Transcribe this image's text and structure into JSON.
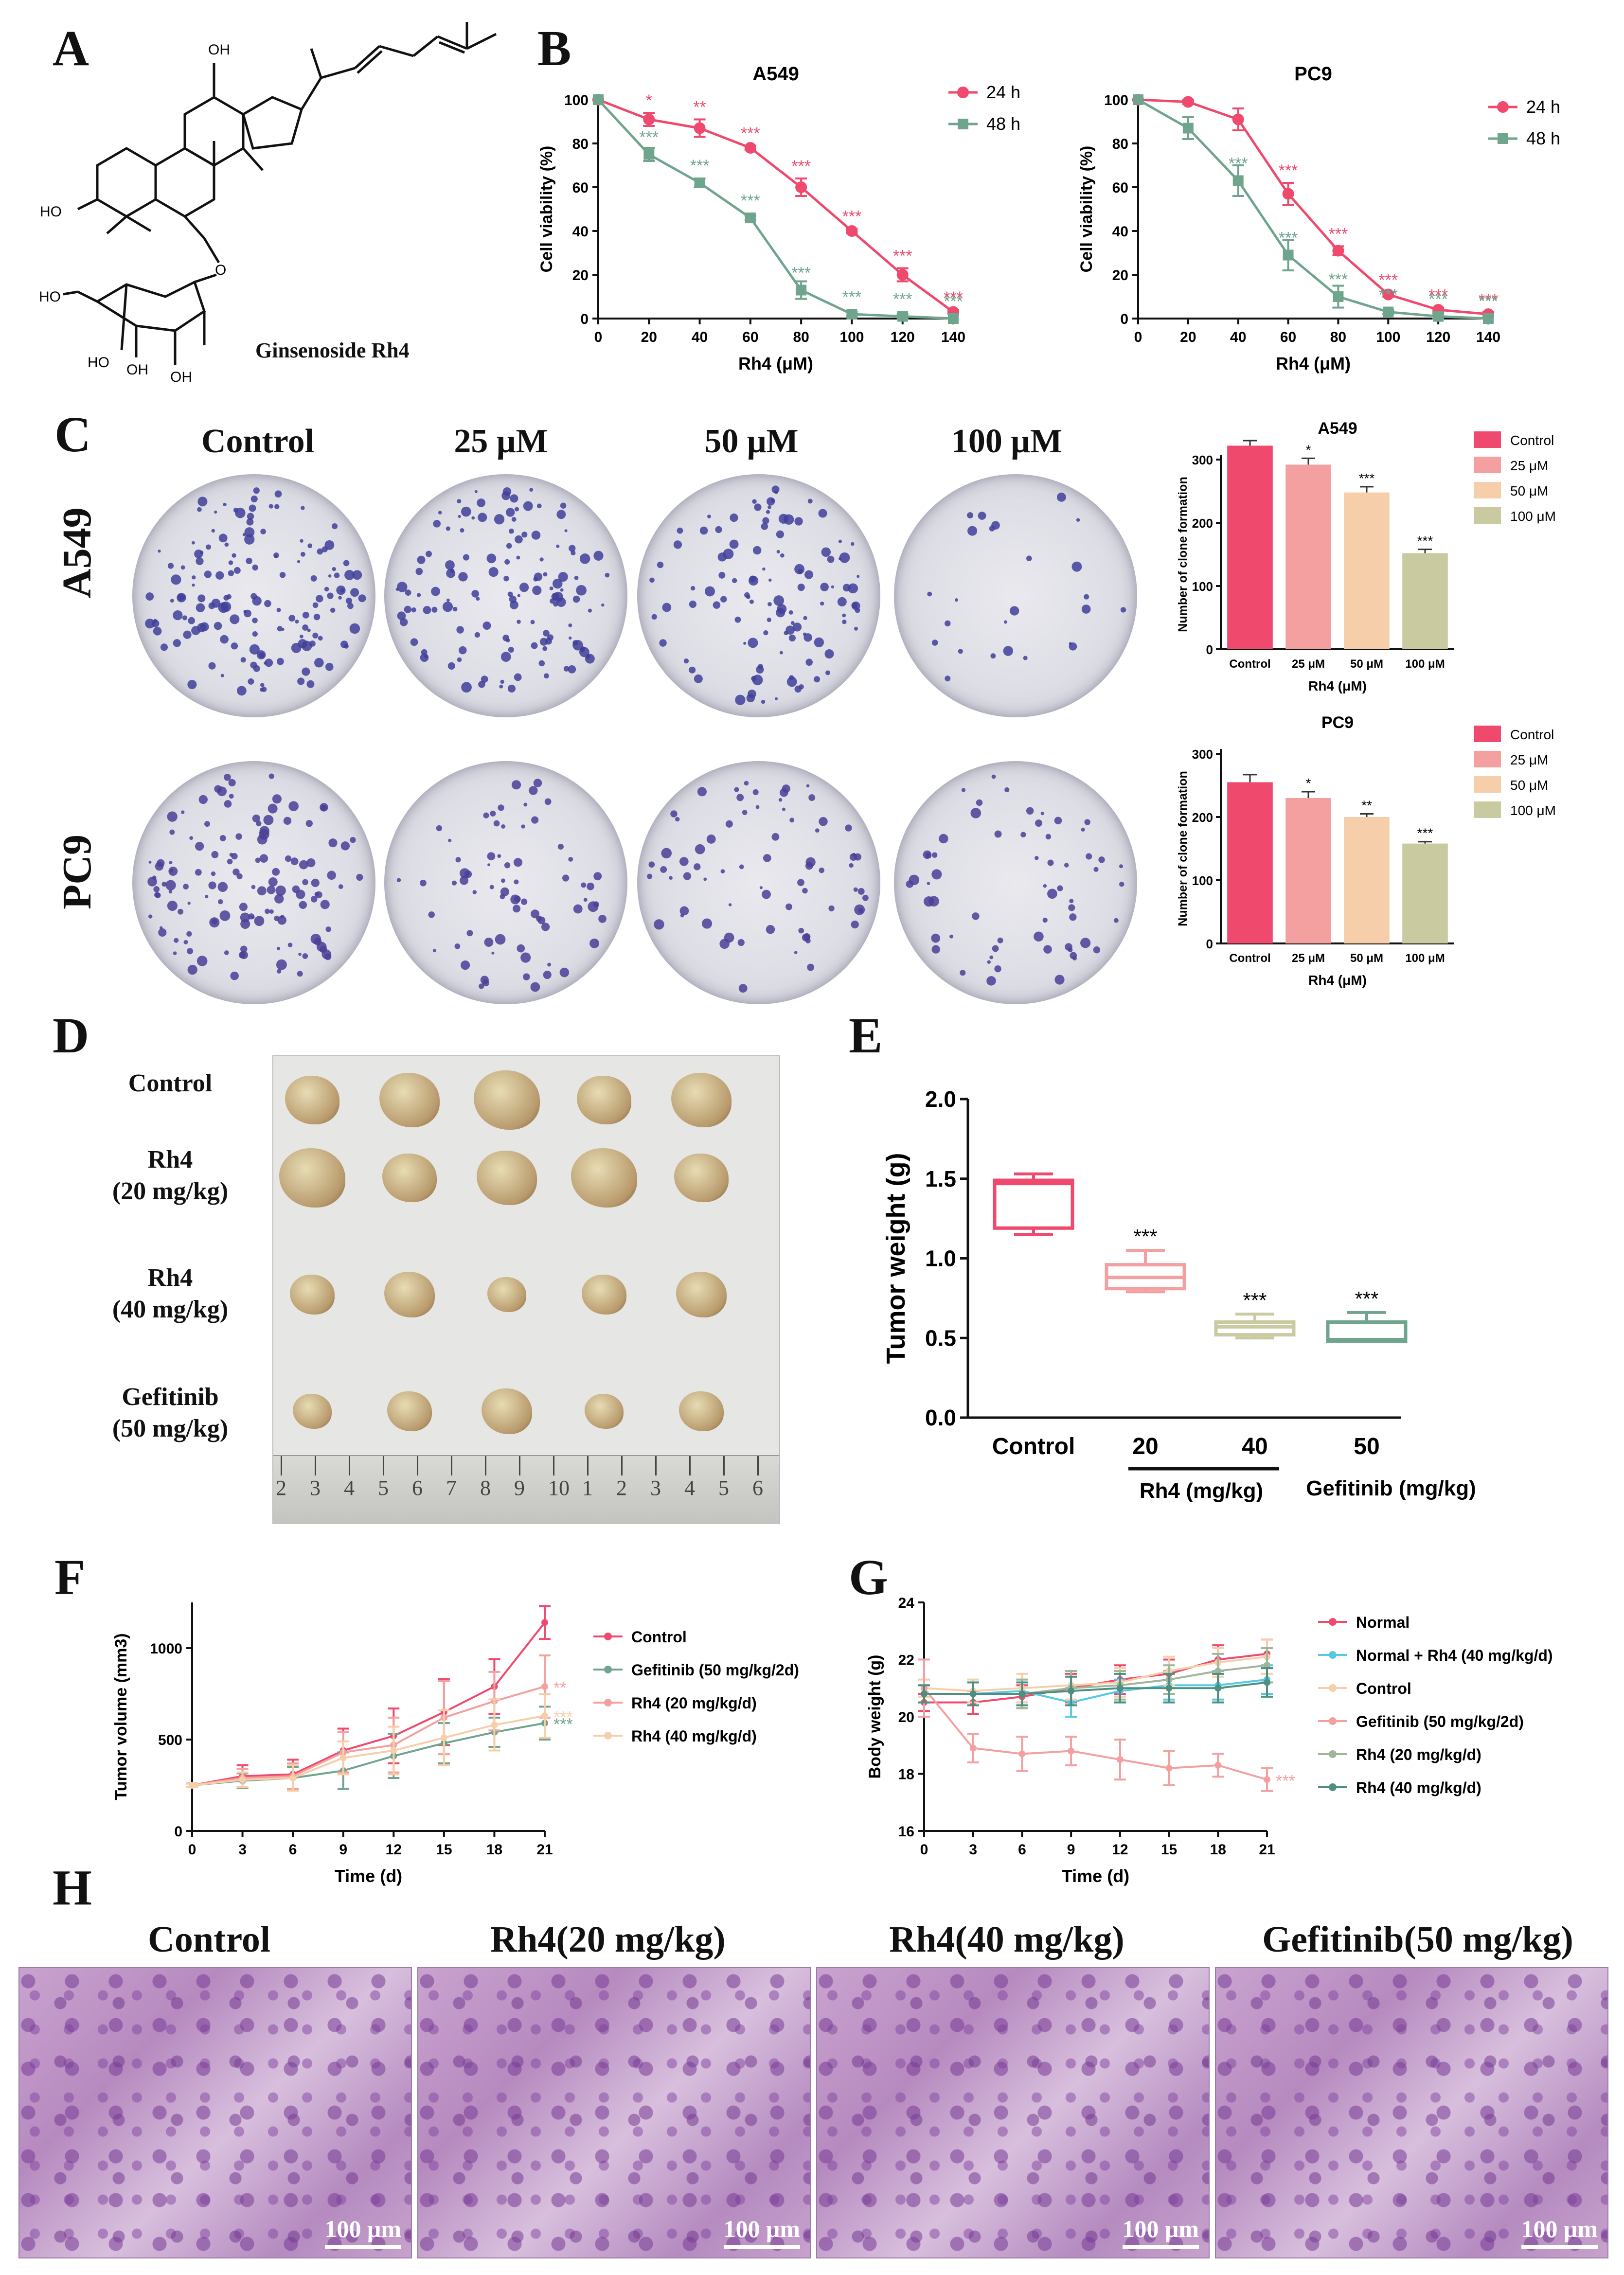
{
  "panel_labels": {
    "A": "A",
    "B": "B",
    "C": "C",
    "D": "D",
    "E": "E",
    "F": "F",
    "G": "G",
    "H": "H"
  },
  "panelA": {
    "caption": "Ginsenoside Rh4",
    "atom_labels": [
      "OH",
      "HO",
      "O",
      "HO",
      "HO",
      "OH",
      "OH"
    ]
  },
  "panelC": {
    "column_titles": [
      "Control",
      "25 μM",
      "50 μM",
      "100 μM"
    ],
    "row_titles": [
      "A549",
      "PC9"
    ]
  },
  "panelD": {
    "row_labels": [
      [
        "Control"
      ],
      [
        "Rh4",
        "(20 mg/kg)"
      ],
      [
        "Rh4",
        "(40 mg/kg)"
      ],
      [
        "Gefitinib",
        "(50 mg/kg)"
      ]
    ],
    "ruler_digits": [
      "2",
      "3",
      "4",
      "5",
      "6",
      "7",
      "8",
      "9",
      "10",
      "1",
      "2",
      "3",
      "4",
      "5",
      "6"
    ]
  },
  "panelH": {
    "titles": [
      "Control",
      "Rh4(20 mg/kg)",
      "Rh4(40 mg/kg)",
      "Gefitinib(50 mg/kg)"
    ],
    "scale_bar": "100 μm"
  },
  "colors": {
    "pink": "#ef4a6e",
    "green": "#6fa48d",
    "salmon": "#f4a0a0",
    "peach": "#f6cfaa",
    "khaki": "#c9caa0",
    "cyan": "#57c8e4",
    "teal": "#4f8f82",
    "gray_green": "#9fb69a"
  },
  "chart_data": [
    {
      "id": "B-A549",
      "type": "line",
      "title": "A549",
      "xlabel": "Rh4 (μM)",
      "ylabel": "Cell viability (%)",
      "x": [
        0,
        20,
        40,
        60,
        80,
        100,
        120,
        140
      ],
      "xlim": [
        0,
        140
      ],
      "ylim": [
        0,
        100
      ],
      "xticks": [
        0,
        20,
        40,
        60,
        80,
        100,
        120,
        140
      ],
      "yticks": [
        0,
        20,
        40,
        60,
        80,
        100
      ],
      "legend": "top-right",
      "series": [
        {
          "name": "24 h",
          "color": "#ef4a6e",
          "marker": "circle",
          "values": [
            100,
            91,
            87,
            78,
            60,
            40,
            20,
            3
          ],
          "err": [
            0,
            3,
            4,
            1,
            4,
            1,
            3,
            1
          ],
          "sig": [
            "",
            "*",
            "**",
            "***",
            "***",
            "***",
            "***",
            "***"
          ]
        },
        {
          "name": "48 h",
          "color": "#6fa48d",
          "marker": "square",
          "values": [
            100,
            75,
            62,
            46,
            13,
            2,
            1,
            0
          ],
          "err": [
            0,
            3,
            2,
            1,
            4,
            1,
            1,
            0
          ],
          "sig": [
            "",
            "***",
            "***",
            "***",
            "***",
            "***",
            "***",
            "***"
          ]
        }
      ]
    },
    {
      "id": "B-PC9",
      "type": "line",
      "title": "PC9",
      "xlabel": "Rh4 (μM)",
      "ylabel": "Cell viability (%)",
      "x": [
        0,
        20,
        40,
        60,
        80,
        100,
        120,
        140
      ],
      "xlim": [
        0,
        140
      ],
      "ylim": [
        0,
        100
      ],
      "xticks": [
        0,
        20,
        40,
        60,
        80,
        100,
        120,
        140
      ],
      "yticks": [
        0,
        20,
        40,
        60,
        80,
        100
      ],
      "legend": "top-right",
      "series": [
        {
          "name": "24 h",
          "color": "#ef4a6e",
          "marker": "circle",
          "values": [
            100,
            99,
            91,
            57,
            31,
            11,
            4,
            2
          ],
          "err": [
            0,
            1,
            5,
            5,
            2,
            1,
            1,
            1
          ],
          "sig": [
            "",
            "",
            "",
            "***",
            "***",
            "***",
            "***",
            "***"
          ]
        },
        {
          "name": "48 h",
          "color": "#6fa48d",
          "marker": "square",
          "values": [
            100,
            87,
            63,
            29,
            10,
            3,
            1,
            0
          ],
          "err": [
            0,
            5,
            7,
            7,
            5,
            1,
            1,
            0
          ],
          "sig": [
            "",
            "",
            "***",
            "***",
            "***",
            "***",
            "***",
            "***"
          ]
        }
      ]
    },
    {
      "id": "C-A549",
      "type": "bar",
      "title": "A549",
      "categories": [
        "Control",
        "25 μM",
        "50 μM",
        "100 μM"
      ],
      "values": [
        322,
        292,
        248,
        152
      ],
      "err": [
        8,
        10,
        9,
        6
      ],
      "sig": [
        "",
        "*",
        "***",
        "***"
      ],
      "colors": [
        "#ef4a6e",
        "#f4a0a0",
        "#f6cfaa",
        "#c9caa0"
      ],
      "xlabel": "Rh4 (μM)",
      "ylabel": "Number of clone formation",
      "ylim": [
        0,
        300
      ],
      "yticks": [
        0,
        100,
        200,
        300
      ],
      "legend": [
        "Control",
        "25 μM",
        "50 μM",
        "100 μM"
      ]
    },
    {
      "id": "C-PC9",
      "type": "bar",
      "title": "PC9",
      "categories": [
        "Control",
        "25 μM",
        "50 μM",
        "100 μM"
      ],
      "values": [
        255,
        230,
        200,
        158
      ],
      "err": [
        12,
        10,
        5,
        3
      ],
      "sig": [
        "",
        "*",
        "**",
        "***"
      ],
      "colors": [
        "#ef4a6e",
        "#f4a0a0",
        "#f6cfaa",
        "#c9caa0"
      ],
      "xlabel": "Rh4 (μM)",
      "ylabel": "Number of clone formation",
      "ylim": [
        0,
        300
      ],
      "yticks": [
        0,
        100,
        200,
        300
      ],
      "legend": [
        "Control",
        "25 μM",
        "50 μM",
        "100 μM"
      ]
    },
    {
      "id": "E",
      "type": "box",
      "ylabel": "Tumor weight (g)",
      "categories": [
        "Control",
        "20",
        "40",
        "50"
      ],
      "group_labels": [
        "Rh4 (mg/kg)",
        "Gefitinib (mg/kg)"
      ],
      "ylim": [
        0,
        2.0
      ],
      "yticks": [
        0.0,
        0.5,
        1.0,
        1.5,
        2.0
      ],
      "boxes": [
        {
          "min": 1.15,
          "q1": 1.19,
          "median": 1.47,
          "q3": 1.49,
          "max": 1.53,
          "color": "#ef4a6e",
          "sig": ""
        },
        {
          "min": 0.79,
          "q1": 0.81,
          "median": 0.88,
          "q3": 0.96,
          "max": 1.05,
          "color": "#f4a0a0",
          "sig": "***"
        },
        {
          "min": 0.5,
          "q1": 0.52,
          "median": 0.57,
          "q3": 0.6,
          "max": 0.65,
          "color": "#c9caa0",
          "sig": "***"
        },
        {
          "min": 0.48,
          "q1": 0.48,
          "median": 0.49,
          "q3": 0.6,
          "max": 0.66,
          "color": "#6fa48d",
          "sig": "***"
        }
      ]
    },
    {
      "id": "F",
      "type": "line",
      "xlabel": "Time (d)",
      "ylabel": "Tumor volume (mm3)",
      "x": [
        0,
        3,
        6,
        9,
        12,
        15,
        18,
        21
      ],
      "xlim": [
        0,
        21
      ],
      "ylim": [
        0,
        1250
      ],
      "xticks": [
        0,
        3,
        6,
        9,
        12,
        15,
        18,
        21
      ],
      "yticks": [
        0,
        500,
        1000
      ],
      "legend": "right",
      "series": [
        {
          "name": "Control",
          "color": "#ef4a6e",
          "values": [
            250,
            300,
            310,
            440,
            520,
            650,
            790,
            1140
          ],
          "err": [
            10,
            60,
            80,
            120,
            150,
            180,
            150,
            90
          ],
          "sig": ""
        },
        {
          "name": "Gefitinib (50 mg/kg/2d)",
          "color": "#6fa48d",
          "values": [
            250,
            275,
            290,
            330,
            410,
            480,
            540,
            590
          ],
          "err": [
            10,
            40,
            60,
            100,
            120,
            110,
            80,
            90
          ],
          "sig": "***"
        },
        {
          "name": "Rh4 (20 mg/kg/d)",
          "color": "#f4a0a0",
          "values": [
            250,
            290,
            300,
            430,
            470,
            620,
            710,
            790
          ],
          "err": [
            10,
            50,
            70,
            110,
            150,
            200,
            160,
            170
          ],
          "sig": "**"
        },
        {
          "name": "Rh4 (40 mg/kg/d)",
          "color": "#f6cfaa",
          "values": [
            250,
            280,
            290,
            400,
            440,
            510,
            580,
            630
          ],
          "err": [
            10,
            40,
            70,
            90,
            130,
            150,
            140,
            120
          ],
          "sig": "***"
        }
      ]
    },
    {
      "id": "G",
      "type": "line",
      "xlabel": "Time (d)",
      "ylabel": "Body weight (g)",
      "x": [
        0,
        3,
        6,
        9,
        12,
        15,
        18,
        21
      ],
      "xlim": [
        0,
        21
      ],
      "ylim": [
        16,
        24
      ],
      "xticks": [
        0,
        3,
        6,
        9,
        12,
        15,
        18,
        21
      ],
      "yticks": [
        16,
        18,
        20,
        22,
        24
      ],
      "legend": "right",
      "series": [
        {
          "name": "Normal",
          "color": "#ef4a6e",
          "values": [
            20.5,
            20.5,
            20.7,
            21.0,
            21.3,
            21.5,
            22.0,
            22.2
          ],
          "err": [
            0.3,
            0.4,
            0.4,
            0.5,
            0.5,
            0.5,
            0.5,
            0.5
          ],
          "sig": ""
        },
        {
          "name": "Normal + Rh4 (40 mg/kg/d)",
          "color": "#57c8e4",
          "values": [
            20.8,
            20.8,
            20.9,
            20.5,
            20.9,
            21.1,
            21.1,
            21.3
          ],
          "err": [
            0.3,
            0.4,
            0.4,
            0.5,
            0.4,
            0.5,
            0.5,
            0.5
          ],
          "sig": ""
        },
        {
          "name": "Control",
          "color": "#f6cfaa",
          "values": [
            21.0,
            20.9,
            21.0,
            21.1,
            21.2,
            21.6,
            21.9,
            22.1
          ],
          "err": [
            0.3,
            0.4,
            0.5,
            0.5,
            0.5,
            0.5,
            0.5,
            0.6
          ],
          "sig": ""
        },
        {
          "name": "Gefitinib (50 mg/kg/2d)",
          "color": "#f4a0a0",
          "values": [
            21.0,
            18.9,
            18.7,
            18.8,
            18.5,
            18.2,
            18.3,
            17.8
          ],
          "err": [
            1.0,
            0.5,
            0.6,
            0.5,
            0.7,
            0.6,
            0.4,
            0.4
          ],
          "sig": "***"
        },
        {
          "name": "Rh4 (20 mg/kg/d)",
          "color": "#9fb69a",
          "values": [
            20.8,
            20.8,
            20.8,
            21.0,
            21.1,
            21.3,
            21.6,
            21.8
          ],
          "err": [
            0.3,
            0.4,
            0.5,
            0.6,
            0.5,
            0.5,
            0.6,
            0.6
          ],
          "sig": ""
        },
        {
          "name": "Rh4 (40 mg/kg/d)",
          "color": "#4f8f82",
          "values": [
            20.8,
            20.8,
            20.8,
            20.9,
            21.0,
            21.0,
            21.0,
            21.2
          ],
          "err": [
            0.3,
            0.4,
            0.4,
            0.5,
            0.5,
            0.5,
            0.5,
            0.5
          ],
          "sig": ""
        }
      ]
    }
  ]
}
